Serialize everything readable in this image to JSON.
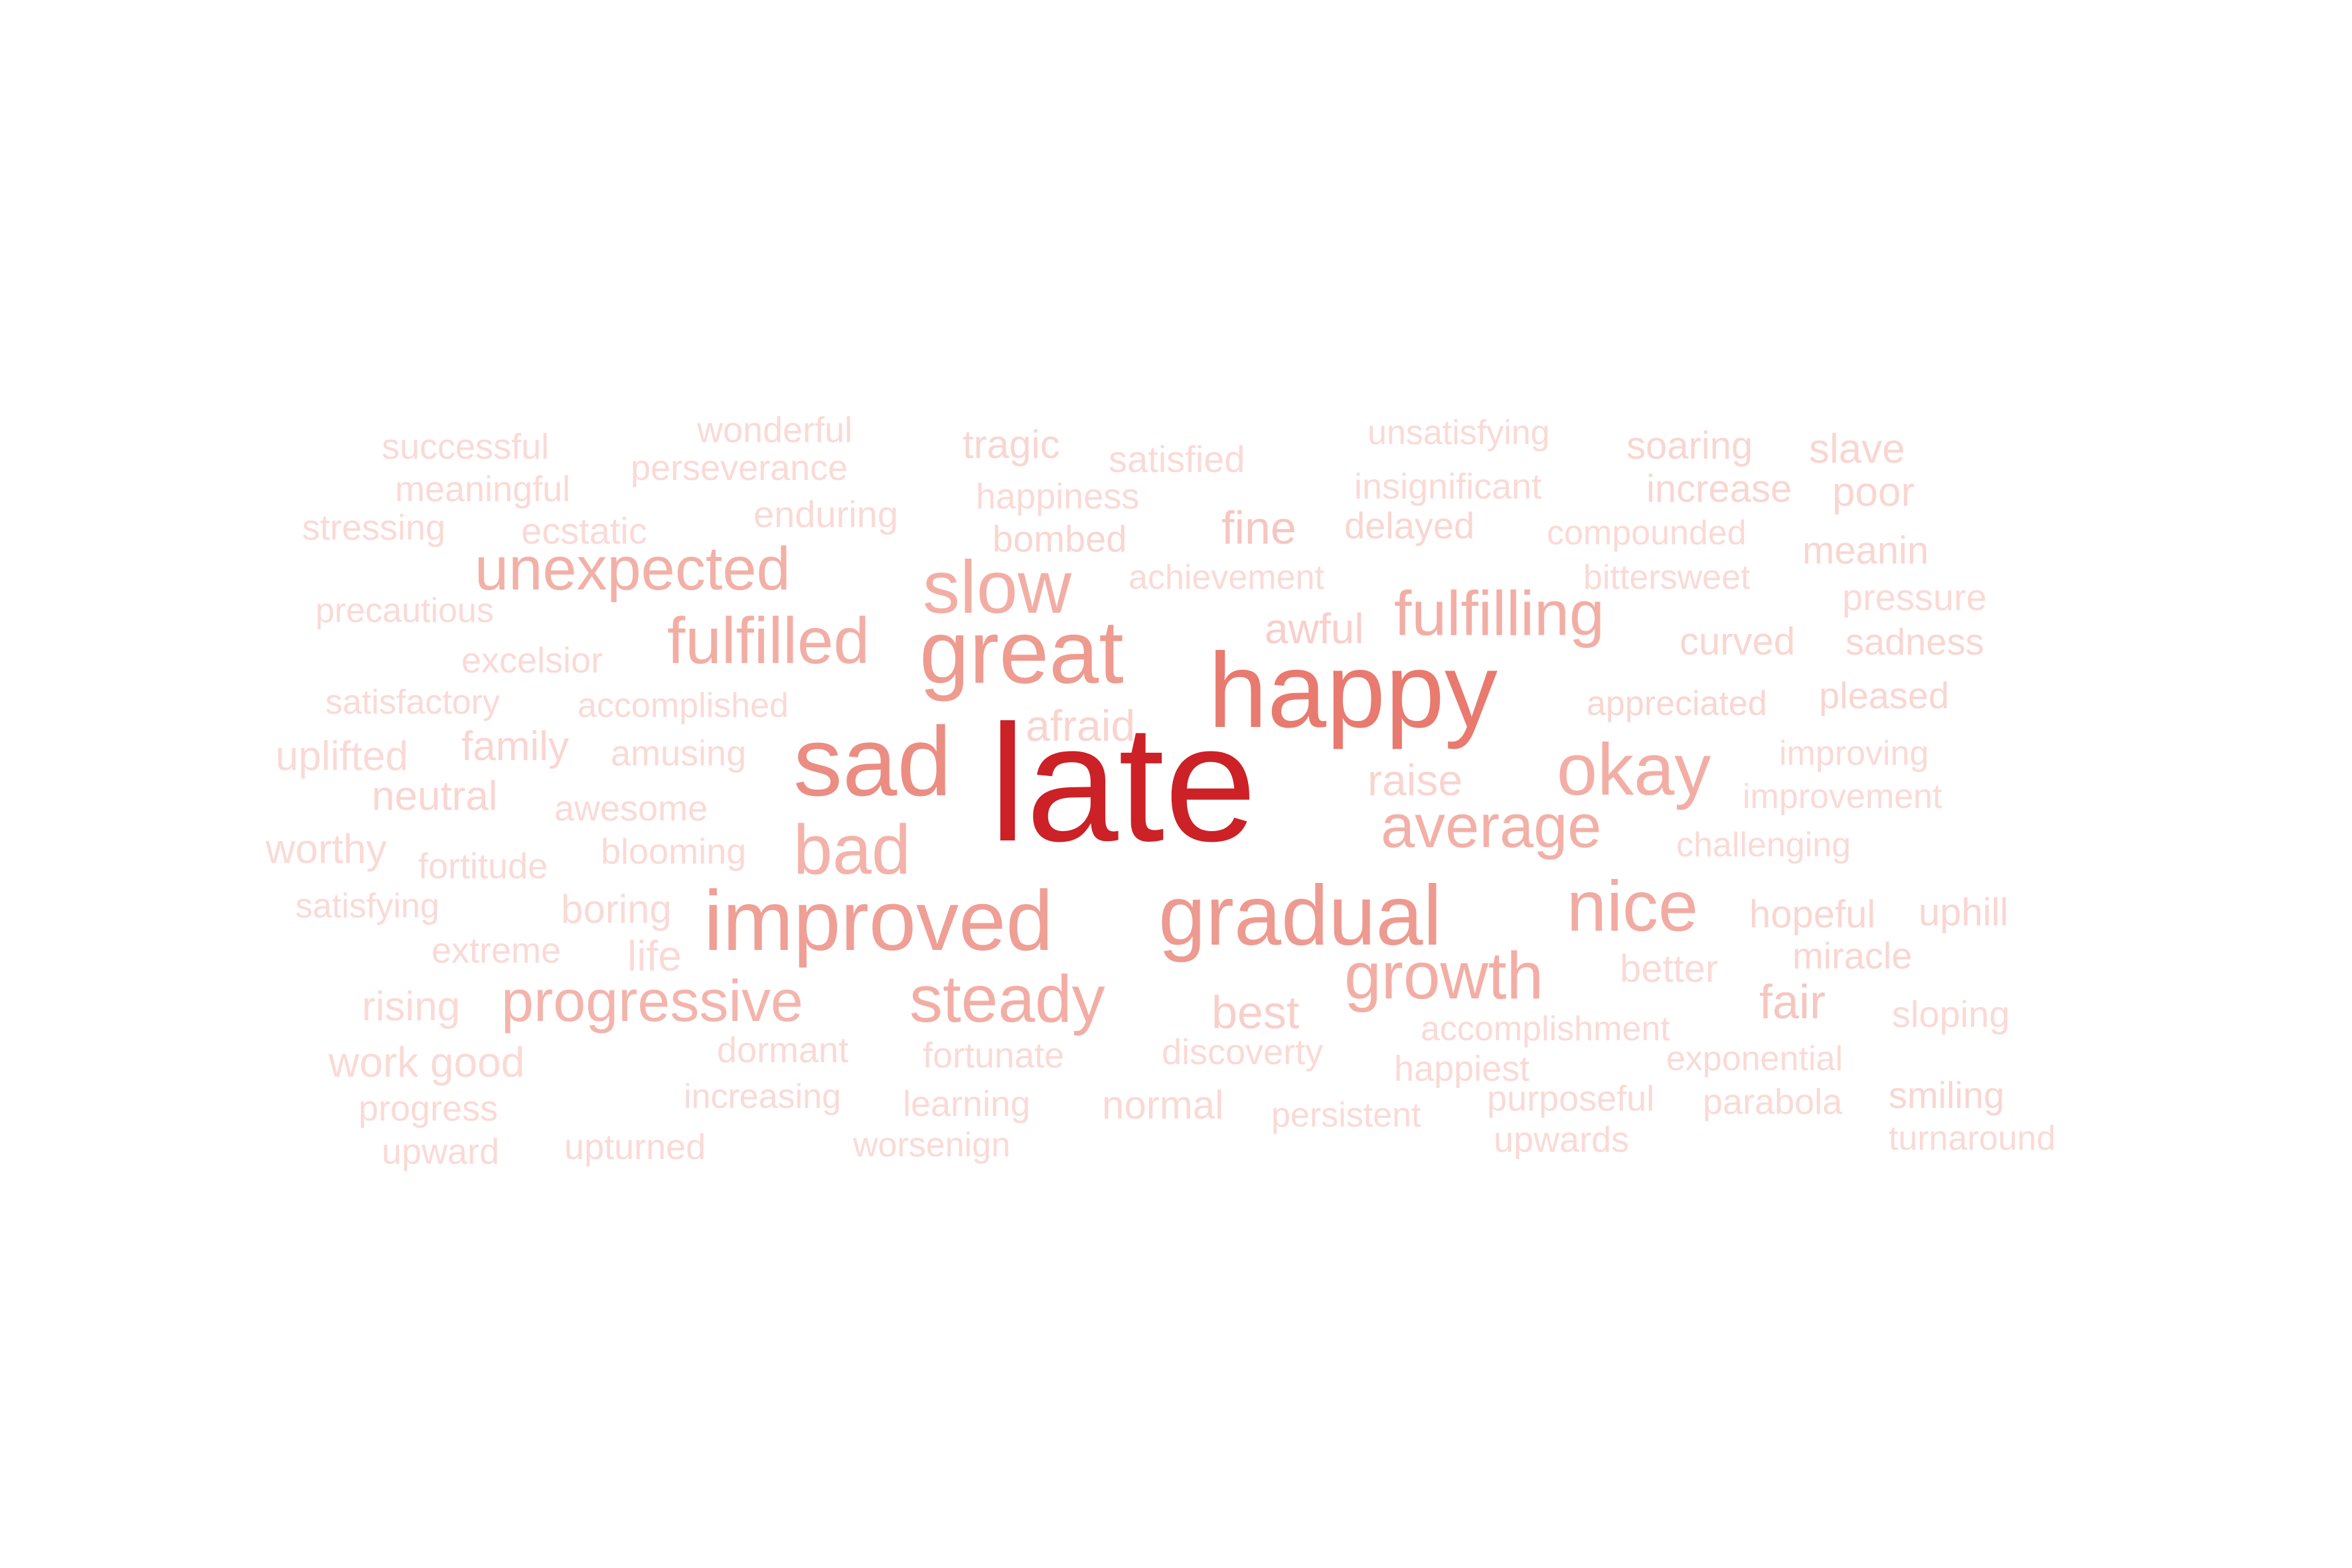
{
  "words": [
    {
      "text": "late",
      "weight": 1.0,
      "color": "#cb2127"
    },
    {
      "text": "happy",
      "weight": 0.62,
      "color": "#e87a6f"
    },
    {
      "text": "sad",
      "weight": 0.58,
      "color": "#eb8d83"
    },
    {
      "text": "great",
      "weight": 0.52,
      "color": "#ee9b90"
    },
    {
      "text": "gradual",
      "weight": 0.5,
      "color": "#ed9a90"
    },
    {
      "text": "improved",
      "weight": 0.48,
      "color": "#ef9f95"
    },
    {
      "text": "slow",
      "weight": 0.45,
      "color": "#f2aea5"
    },
    {
      "text": "okay",
      "weight": 0.43,
      "color": "#f2aea5"
    },
    {
      "text": "nice",
      "weight": 0.43,
      "color": "#f1aba2"
    },
    {
      "text": "bad",
      "weight": 0.42,
      "color": "#f3b2aa"
    },
    {
      "text": "steady",
      "weight": 0.4,
      "color": "#f2aea5"
    },
    {
      "text": "growth",
      "weight": 0.4,
      "color": "#f2aea5"
    },
    {
      "text": "fulfilled",
      "weight": 0.4,
      "color": "#f2aea5"
    },
    {
      "text": "fulfilling",
      "weight": 0.38,
      "color": "#f2aea5"
    },
    {
      "text": "average",
      "weight": 0.37,
      "color": "#f2b0a7"
    },
    {
      "text": "unexpected",
      "weight": 0.37,
      "color": "#f2b0a7"
    },
    {
      "text": "progressive",
      "weight": 0.35,
      "color": "#f3b4ac"
    },
    {
      "text": "fine",
      "weight": 0.28,
      "color": "#f6c6c0"
    },
    {
      "text": "fair",
      "weight": 0.28,
      "color": "#f6c6c0"
    },
    {
      "text": "best",
      "weight": 0.28,
      "color": "#f8cfca"
    },
    {
      "text": "afraid",
      "weight": 0.28,
      "color": "#f9d4cf"
    },
    {
      "text": "raise",
      "weight": 0.26,
      "color": "#f9d4cf"
    },
    {
      "text": "awful",
      "weight": 0.25,
      "color": "#f8cfca"
    },
    {
      "text": "life",
      "weight": 0.26,
      "color": "#fadad6"
    },
    {
      "text": "family",
      "weight": 0.25,
      "color": "#f9d6d1"
    },
    {
      "text": "uplifted",
      "weight": 0.24,
      "color": "#fadad6"
    },
    {
      "text": "neutral",
      "weight": 0.24,
      "color": "#f9d6d1"
    },
    {
      "text": "worthy",
      "weight": 0.24,
      "color": "#fadad6"
    },
    {
      "text": "work good",
      "weight": 0.25,
      "color": "#fadad6"
    },
    {
      "text": "rising",
      "weight": 0.24,
      "color": "#fadad6"
    },
    {
      "text": "boring",
      "weight": 0.23,
      "color": "#fadad6"
    },
    {
      "text": "slave",
      "weight": 0.24,
      "color": "#f9d6d1"
    },
    {
      "text": "poor",
      "weight": 0.24,
      "color": "#f9d6d1"
    },
    {
      "text": "tragic",
      "weight": 0.23,
      "color": "#f9d6d1"
    },
    {
      "text": "normal",
      "weight": 0.23,
      "color": "#fad9d4"
    },
    {
      "text": "meanin",
      "weight": 0.22,
      "color": "#f9d6d1"
    },
    {
      "text": "uphill",
      "weight": 0.22,
      "color": "#f9d6d1"
    },
    {
      "text": "hopeful",
      "weight": 0.22,
      "color": "#f9d6d1"
    },
    {
      "text": "better",
      "weight": 0.22,
      "color": "#fadad6"
    },
    {
      "text": "sadness",
      "weight": 0.21,
      "color": "#f9d6d1"
    },
    {
      "text": "curved",
      "weight": 0.22,
      "color": "#f9d6d1"
    },
    {
      "text": "pleased",
      "weight": 0.21,
      "color": "#f9d6d1"
    },
    {
      "text": "miracle",
      "weight": 0.21,
      "color": "#f9d6d1"
    },
    {
      "text": "sloping",
      "weight": 0.21,
      "color": "#fadad6"
    },
    {
      "text": "smiling",
      "weight": 0.21,
      "color": "#f9d6d1"
    },
    {
      "text": "soaring",
      "weight": 0.22,
      "color": "#f9d6d1"
    },
    {
      "text": "increase",
      "weight": 0.22,
      "color": "#f9d6d1"
    },
    {
      "text": "pressure",
      "weight": 0.21,
      "color": "#fadad6"
    },
    {
      "text": "delayed",
      "weight": 0.21,
      "color": "#f9d6d1"
    },
    {
      "text": "bombed",
      "weight": 0.21,
      "color": "#f9d6d1"
    },
    {
      "text": "ecstatic",
      "weight": 0.21,
      "color": "#fadad6"
    },
    {
      "text": "enduring",
      "weight": 0.21,
      "color": "#fadad6"
    },
    {
      "text": "satisfied",
      "weight": 0.21,
      "color": "#fadad6"
    },
    {
      "text": "happiness",
      "weight": 0.2,
      "color": "#fadad6"
    },
    {
      "text": "wonderful",
      "weight": 0.2,
      "color": "#fadad6"
    },
    {
      "text": "successful",
      "weight": 0.2,
      "color": "#fadad6"
    },
    {
      "text": "meaningful",
      "weight": 0.2,
      "color": "#fadad6"
    },
    {
      "text": "stressing",
      "weight": 0.2,
      "color": "#fadad6"
    },
    {
      "text": "perseverance",
      "weight": 0.2,
      "color": "#fadad6"
    },
    {
      "text": "insignificant",
      "weight": 0.2,
      "color": "#fadad6"
    },
    {
      "text": "unsatisfying",
      "weight": 0.19,
      "color": "#fadad6"
    },
    {
      "text": "compounded",
      "weight": 0.19,
      "color": "#fadad6"
    },
    {
      "text": "bittersweet",
      "weight": 0.19,
      "color": "#fadad6"
    },
    {
      "text": "achievement",
      "weight": 0.19,
      "color": "#fadad6"
    },
    {
      "text": "precautious",
      "weight": 0.19,
      "color": "#fadad6"
    },
    {
      "text": "excelsior",
      "weight": 0.2,
      "color": "#fadad6"
    },
    {
      "text": "satisfactory",
      "weight": 0.19,
      "color": "#fadad6"
    },
    {
      "text": "accomplished",
      "weight": 0.19,
      "color": "#fadad6"
    },
    {
      "text": "appreciated",
      "weight": 0.19,
      "color": "#f9d6d1"
    },
    {
      "text": "amusing",
      "weight": 0.2,
      "color": "#fadad6"
    },
    {
      "text": "awesome",
      "weight": 0.2,
      "color": "#fadad6"
    },
    {
      "text": "improving",
      "weight": 0.19,
      "color": "#fadad6"
    },
    {
      "text": "improvement",
      "weight": 0.19,
      "color": "#fadad6"
    },
    {
      "text": "challenging",
      "weight": 0.19,
      "color": "#fadad6"
    },
    {
      "text": "fortitude",
      "weight": 0.2,
      "color": "#fadad6"
    },
    {
      "text": "blooming",
      "weight": 0.2,
      "color": "#fadad6"
    },
    {
      "text": "satisfying",
      "weight": 0.19,
      "color": "#fadad6"
    },
    {
      "text": "extreme",
      "weight": 0.2,
      "color": "#fadad6"
    },
    {
      "text": "dormant",
      "weight": 0.2,
      "color": "#fadad6"
    },
    {
      "text": "fortunate",
      "weight": 0.2,
      "color": "#fadad6"
    },
    {
      "text": "discoverty",
      "weight": 0.2,
      "color": "#fadad6"
    },
    {
      "text": "accomplishment",
      "weight": 0.19,
      "color": "#fadad6"
    },
    {
      "text": "exponential",
      "weight": 0.19,
      "color": "#fadad6"
    },
    {
      "text": "happiest",
      "weight": 0.2,
      "color": "#fadad6"
    },
    {
      "text": "progress",
      "weight": 0.2,
      "color": "#fadad6"
    },
    {
      "text": "increasing",
      "weight": 0.19,
      "color": "#fadad6"
    },
    {
      "text": "learning",
      "weight": 0.2,
      "color": "#fadad6"
    },
    {
      "text": "persistent",
      "weight": 0.19,
      "color": "#fadad6"
    },
    {
      "text": "purposeful",
      "weight": 0.2,
      "color": "#fadad6"
    },
    {
      "text": "parabola",
      "weight": 0.2,
      "color": "#fadad6"
    },
    {
      "text": "upward",
      "weight": 0.2,
      "color": "#fadad6"
    },
    {
      "text": "upturned",
      "weight": 0.2,
      "color": "#fadad6"
    },
    {
      "text": "worsenign",
      "weight": 0.19,
      "color": "#fadad6"
    },
    {
      "text": "upwards",
      "weight": 0.2,
      "color": "#fadad6"
    },
    {
      "text": "turnaround",
      "weight": 0.19,
      "color": "#fadad6"
    }
  ]
}
